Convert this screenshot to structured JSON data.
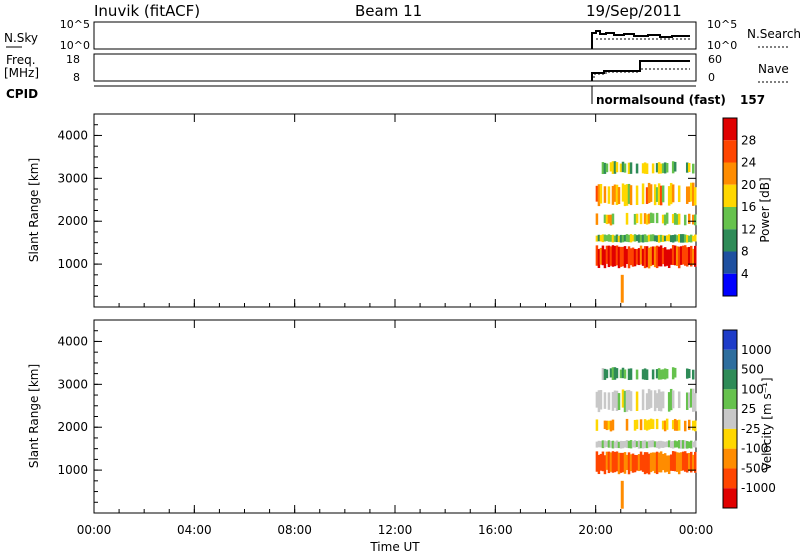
{
  "header": {
    "station": "Inuvik (fitACF)",
    "beam": "Beam 11",
    "date": "19/Sep/2011",
    "program": "normalsound (fast)",
    "program_id": "157"
  },
  "params_panel": {
    "left_labels": {
      "nsky": "N.Sky",
      "freq": "Freq.",
      "freq_unit": "[MHz]",
      "cpid": "CPID"
    },
    "right_labels": {
      "nsearch": "N.Search",
      "nave": "Nave"
    },
    "noise_ticks": [
      "10^5",
      "10^0"
    ],
    "freq_ticks": [
      "18",
      "8"
    ],
    "nave_ticks": [
      "60",
      "0"
    ]
  },
  "x_axis": {
    "label": "Time UT",
    "ticks": [
      "00:00",
      "04:00",
      "08:00",
      "12:00",
      "16:00",
      "20:00",
      "00:00"
    ]
  },
  "power_panel": {
    "ylabel": "Slant Range [km]",
    "yticks": [
      "4000",
      "3000",
      "2000",
      "1000"
    ],
    "colorbar_label": "Power [dB]",
    "colorbar_ticks": [
      "28",
      "24",
      "20",
      "16",
      "12",
      "8",
      "4"
    ],
    "colors": [
      "#0000ff",
      "#1e50a0",
      "#2e8b57",
      "#66c24d",
      "#ffd700",
      "#ff8c00",
      "#ff4500",
      "#e00000"
    ]
  },
  "velocity_panel": {
    "ylabel": "Slant Range [km]",
    "yticks": [
      "4000",
      "3000",
      "2000",
      "1000"
    ],
    "colorbar_label": "Velocity [m s⁻¹]",
    "colorbar_ticks": [
      "1000",
      "500",
      "100",
      "25",
      "-25",
      "-100",
      "-500",
      "-1000"
    ],
    "colors": [
      "#1e3cc8",
      "#2e6e9e",
      "#2e8b57",
      "#66c24d",
      "#c8c8c8",
      "#ffd700",
      "#ff8c00",
      "#ff4500",
      "#e00000"
    ]
  },
  "chart_data": {
    "type": "heatmap",
    "title": "Inuvik (fitACF)",
    "subtitle": "Beam 11",
    "xlabel": "Time UT",
    "xlim": [
      0,
      24
    ],
    "panels": [
      {
        "name": "Power",
        "unit": "dB",
        "ylabel": "Slant Range [km]",
        "ylim": [
          0,
          4500
        ],
        "clim": [
          0,
          30
        ]
      },
      {
        "name": "Velocity",
        "unit": "m s^-1",
        "ylabel": "Slant Range [km]",
        "ylim": [
          0,
          4500
        ],
        "clim": [
          -1000,
          1000
        ]
      }
    ],
    "data_start_hour": 20.0,
    "echo_bands_km": [
      {
        "range": [
          900,
          1450
        ],
        "power_db": 28,
        "velocity": -500
      },
      {
        "range": [
          1500,
          1700
        ],
        "power_db": 14,
        "velocity": 25
      },
      {
        "range": [
          1900,
          2200
        ],
        "power_db": 18,
        "velocity": -100
      },
      {
        "range": [
          2350,
          2900
        ],
        "power_db": 20,
        "velocity": 0
      },
      {
        "range": [
          3100,
          3400
        ],
        "power_db": 14,
        "velocity": 100
      }
    ],
    "grid": false
  }
}
